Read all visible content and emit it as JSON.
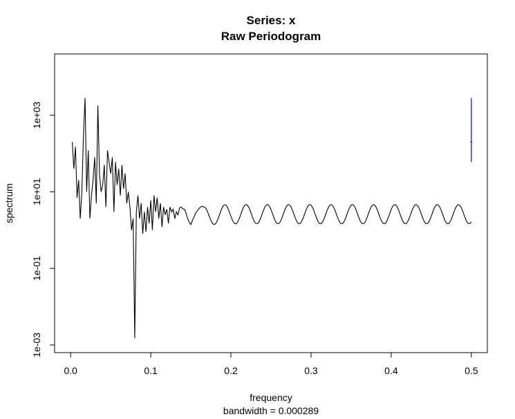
{
  "chart_data": {
    "type": "line",
    "title": "Series: x",
    "subtitle": "Raw Periodogram",
    "xlabel": "frequency",
    "xlabel_sub": "bandwidth = 0.000289",
    "ylabel": "spectrum",
    "x_ticks": [
      "0.0",
      "0.1",
      "0.2",
      "0.3",
      "0.4",
      "0.5"
    ],
    "y_ticks": [
      "1e-03",
      "1e-01",
      "1e+01",
      "1e+03"
    ],
    "x_range": [
      -0.02,
      0.52
    ],
    "y_log10_range": [
      -3.2,
      4.6
    ],
    "y_scale": "log",
    "line_color": "#000000",
    "ci_bar_color": "#0000ff",
    "ci_bar": {
      "x": 0.5,
      "low": 60,
      "mid": 200,
      "high": 2800
    },
    "series": [
      {
        "values_x": [
          0.002,
          0.004,
          0.006,
          0.008,
          0.01,
          0.012,
          0.014,
          0.016,
          0.018,
          0.02,
          0.022,
          0.024,
          0.026,
          0.028,
          0.03,
          0.032,
          0.034,
          0.036,
          0.038,
          0.04,
          0.042,
          0.044,
          0.046,
          0.048,
          0.05,
          0.052,
          0.054,
          0.056,
          0.058,
          0.06,
          0.062,
          0.064,
          0.066,
          0.068,
          0.07,
          0.072,
          0.074,
          0.076,
          0.078,
          0.08,
          0.082,
          0.084,
          0.086,
          0.088,
          0.09,
          0.092,
          0.094,
          0.096,
          0.098,
          0.1,
          0.102,
          0.104,
          0.106,
          0.108,
          0.11,
          0.112,
          0.114,
          0.116,
          0.118,
          0.12,
          0.122,
          0.124,
          0.126,
          0.128,
          0.13,
          0.132,
          0.134,
          0.136,
          0.138,
          0.14,
          0.142,
          0.144,
          0.146,
          0.148,
          0.15,
          0.152,
          0.154,
          0.156,
          0.158,
          0.16,
          0.162,
          0.164,
          0.166
        ],
        "values_y": [
          200,
          40,
          150,
          7,
          20,
          2,
          10,
          300,
          2800,
          10,
          120,
          2,
          8,
          20,
          80,
          5,
          1800,
          30,
          10,
          15,
          50,
          4,
          120,
          60,
          30,
          80,
          3,
          60,
          15,
          40,
          8,
          50,
          12,
          30,
          5,
          10,
          4,
          1,
          2,
          0.0015,
          3,
          8,
          2,
          5,
          0.8,
          3,
          0.9,
          4,
          1.5,
          6,
          1,
          8,
          3,
          7,
          2,
          5,
          1.2,
          4,
          2.5,
          3.5,
          1.5,
          4,
          3,
          3.5,
          2,
          3,
          2.5,
          3.8,
          4,
          3.6,
          3.5,
          2.8,
          2,
          1.6,
          1.4,
          1.8,
          2.2,
          2.8,
          3.2,
          3.6,
          4.0,
          4.2,
          4.0
        ]
      }
    ],
    "periodic_tail": {
      "x_start": 0.166,
      "x_end": 0.5,
      "center": 2.6,
      "amplitude_log10": 0.25,
      "period": 0.0265
    }
  }
}
